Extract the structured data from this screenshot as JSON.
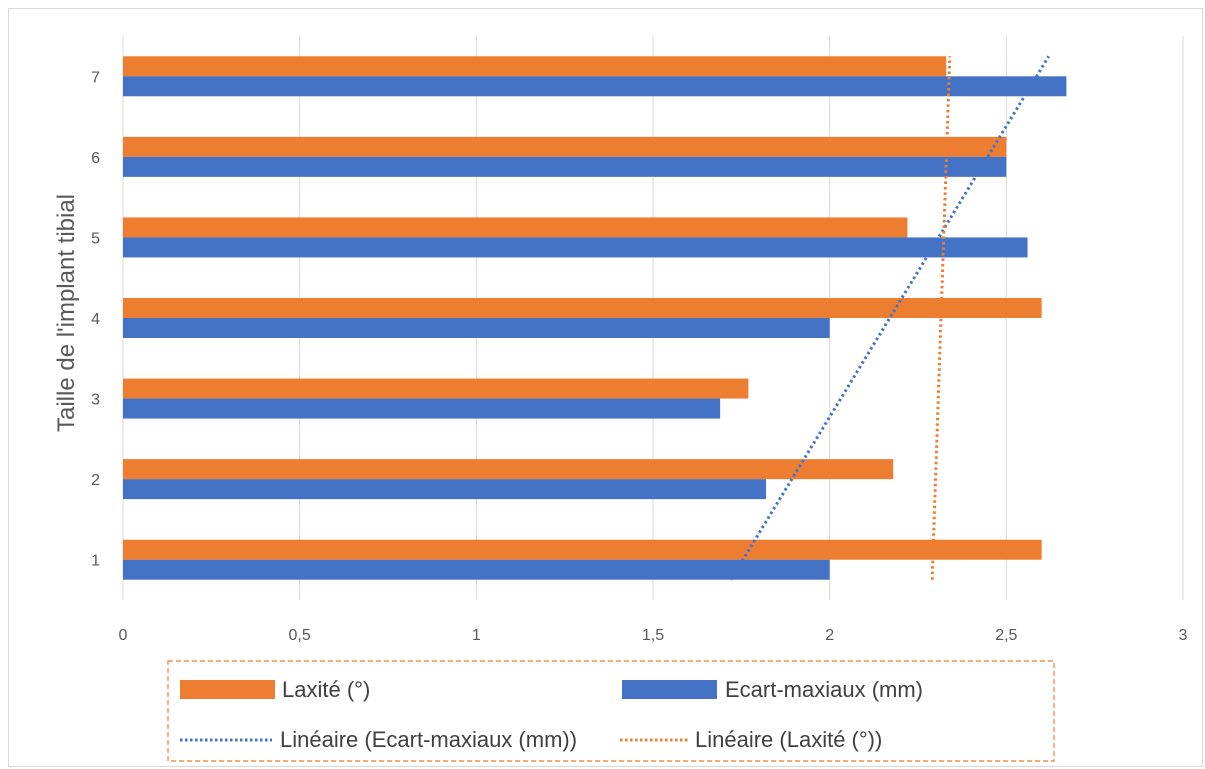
{
  "chart_data": {
    "type": "bar",
    "orientation": "horizontal",
    "title": "",
    "xlabel": "",
    "ylabel": "Taille de l'implant tibial",
    "categories": [
      "1",
      "2",
      "3",
      "4",
      "5",
      "6",
      "7"
    ],
    "x_ticks": [
      "0",
      "0,5",
      "1",
      "1,5",
      "2",
      "2,5",
      "3"
    ],
    "xlim": [
      0,
      3
    ],
    "grid": "vertical",
    "series": [
      {
        "name": "Laxité (°)",
        "color": "#ED7D31",
        "values": [
          2.6,
          2.18,
          1.77,
          2.6,
          2.22,
          2.5,
          2.33
        ]
      },
      {
        "name": "Ecart-maxiaux (mm)",
        "color": "#4472C4",
        "values": [
          2.0,
          1.82,
          1.69,
          2.0,
          2.56,
          2.5,
          2.67
        ]
      }
    ],
    "trendlines": [
      {
        "name": "Linéaire (Ecart-maxiaux (mm))",
        "series": "Ecart-maxiaux (mm)",
        "type": "linear",
        "color": "#4472C4",
        "style": "dotted",
        "x_at_1": 1.72,
        "x_at_7": 2.62
      },
      {
        "name": "Linéaire (Laxité (°))",
        "series": "Laxité (°)",
        "type": "linear",
        "color": "#ED7D31",
        "style": "dotted",
        "x_at_1": 2.29,
        "x_at_7": 2.34
      }
    ],
    "legend": {
      "placement": "bottom",
      "items": [
        "Laxité (°)",
        "Ecart-maxiaux (mm)",
        "Linéaire (Ecart-maxiaux (mm))",
        "Linéaire (Laxité (°))"
      ]
    }
  }
}
